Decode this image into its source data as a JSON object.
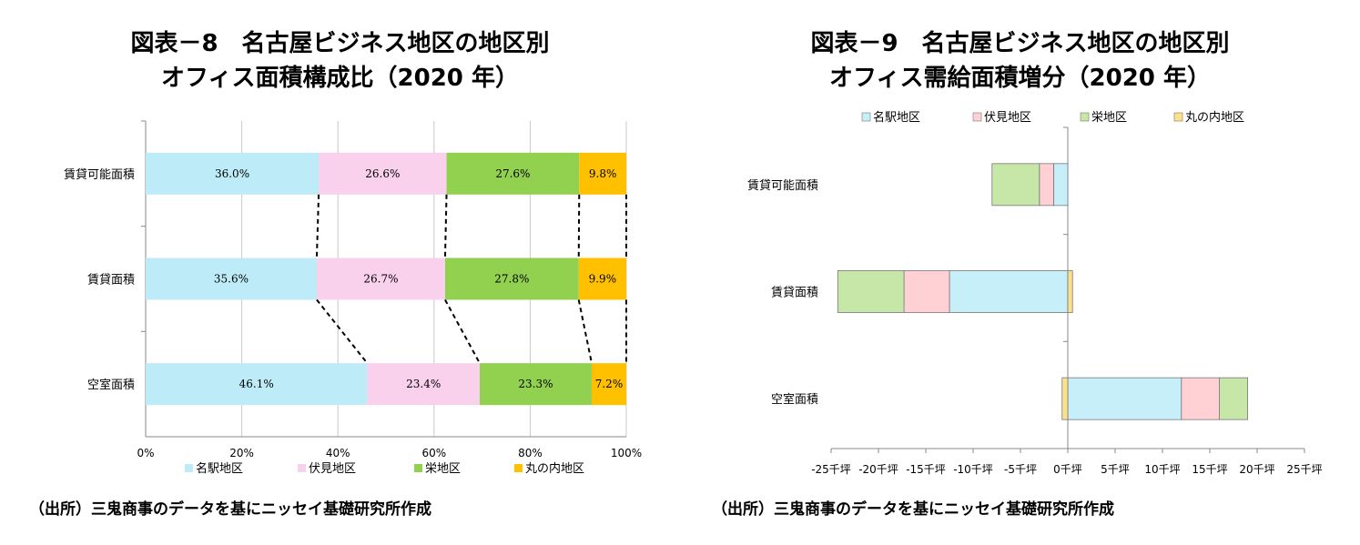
{
  "charts": [
    {
      "id": "fig8",
      "title_line1": "図表－8　名古屋ビジネス地区の地区別",
      "title_line2": "オフィス面積構成比（2020 年）",
      "source": "（出所）三鬼商事のデータを基にニッセイ基礎研究所作成"
    },
    {
      "id": "fig9",
      "title_line1": "図表－9　名古屋ビジネス地区の地区別",
      "title_line2": "オフィス需給面積増分（2020 年）",
      "source": "（出所）三鬼商事のデータを基にニッセイ基礎研究所作成"
    }
  ],
  "chart_data": [
    {
      "type": "bar",
      "orientation": "horizontal",
      "stacked": "percent",
      "categories": [
        "賃貸可能面積",
        "賃貸面積",
        "空室面積"
      ],
      "series": [
        {
          "name": "名駅地区",
          "values": [
            36.0,
            35.6,
            46.1
          ],
          "labels": [
            "36.0%",
            "35.6%",
            "46.1%"
          ],
          "color": "#BDEBF8"
        },
        {
          "name": "伏見地区",
          "values": [
            26.6,
            26.7,
            23.4
          ],
          "labels": [
            "26.6%",
            "26.7%",
            "23.4%"
          ],
          "color": "#F9D1EC"
        },
        {
          "name": "栄地区",
          "values": [
            27.6,
            27.8,
            23.3
          ],
          "labels": [
            "27.6%",
            "27.8%",
            "23.3%"
          ],
          "color": "#92D050"
        },
        {
          "name": "丸の内地区",
          "values": [
            9.8,
            9.9,
            7.2
          ],
          "labels": [
            "9.8%",
            "9.9%",
            "7.2%"
          ],
          "color": "#FFC000"
        }
      ],
      "xticks": [
        "0%",
        "20%",
        "40%",
        "60%",
        "80%",
        "100%"
      ],
      "xlim": [
        0,
        100
      ],
      "grid": true,
      "series_connector_lines": true,
      "legend_position": "bottom"
    },
    {
      "type": "bar",
      "orientation": "horizontal",
      "stacked": "diverging",
      "categories": [
        "賃貸可能面積",
        "賃貸面積",
        "空室面積"
      ],
      "series": [
        {
          "name": "名駅地区",
          "values": [
            -1.5,
            -12.5,
            12.0
          ],
          "color": "#C6EFFA"
        },
        {
          "name": "伏見地区",
          "values": [
            -1.5,
            -4.8,
            4.0
          ],
          "color": "#FFD0D4"
        },
        {
          "name": "栄地区",
          "values": [
            -5.0,
            -7.0,
            3.0
          ],
          "color": "#C6E7A8"
        },
        {
          "name": "丸の内地区",
          "values": [
            0.0,
            0.5,
            -0.6
          ],
          "color": "#FFE08A"
        }
      ],
      "xticks": [
        "-25千坪",
        "-20千坪",
        "-15千坪",
        "-10千坪",
        "-5千坪",
        "0千坪",
        "5千坪",
        "10千坪",
        "15千坪",
        "20千坪",
        "25千坪"
      ],
      "xlim": [
        -25,
        25
      ],
      "grid": false,
      "legend_position": "top"
    }
  ]
}
